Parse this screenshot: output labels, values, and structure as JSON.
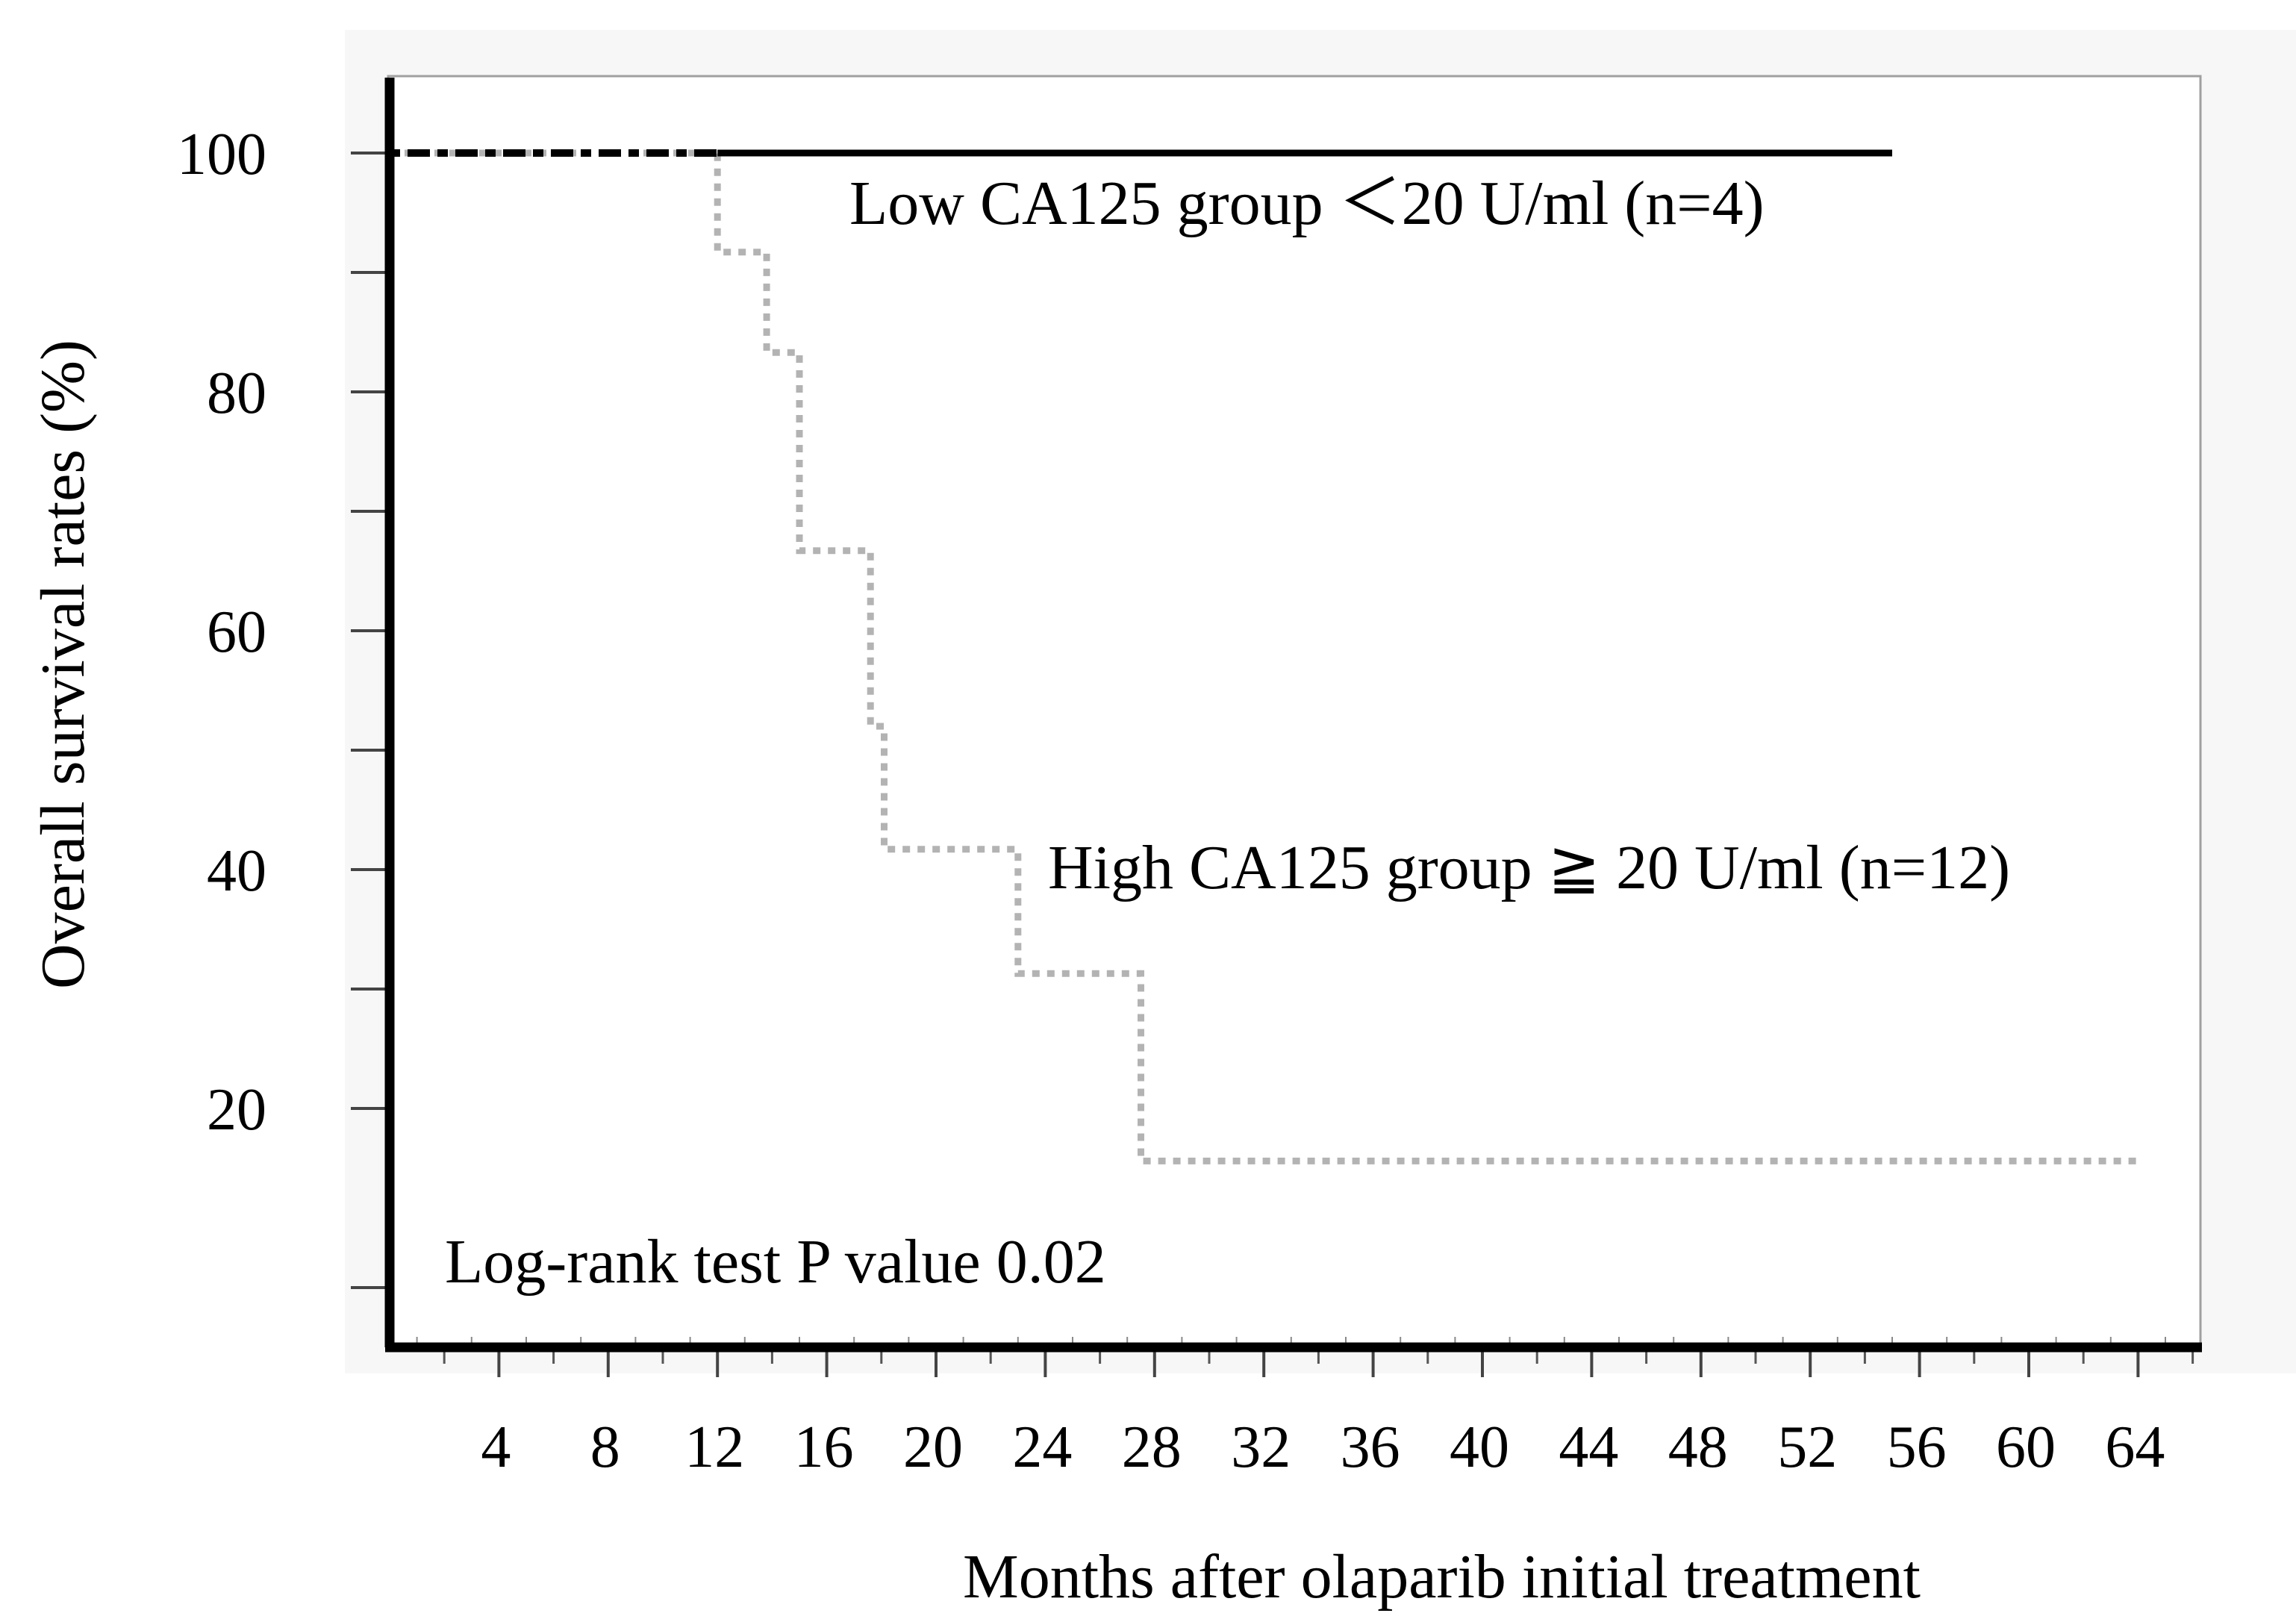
{
  "chart_data": {
    "type": "line",
    "title": "",
    "xlabel": "Months after olaparib initial treatment",
    "ylabel": "Overall survival rates (%)",
    "xlim": [
      0,
      66
    ],
    "ylim": [
      0,
      105
    ],
    "x_ticks": [
      4,
      8,
      12,
      16,
      20,
      24,
      28,
      32,
      36,
      40,
      44,
      48,
      52,
      56,
      60,
      64
    ],
    "x_tick_labels": [
      "4",
      "8",
      "12",
      "16",
      "20",
      "24",
      "28",
      "32",
      "36",
      "40",
      "44",
      "48",
      "52",
      "56",
      "60",
      "64"
    ],
    "y_ticks": [
      20,
      40,
      60,
      80,
      100
    ],
    "y_tick_labels": [
      "20",
      "40",
      "60",
      "80",
      "100"
    ],
    "y_minor_ticks": [
      5,
      30,
      50,
      70,
      90
    ],
    "grid": false,
    "series": [
      {
        "name": "Low CA125 group ＜20 U/ml (n=4)",
        "style": "solid",
        "color": "#000000",
        "x": [
          0,
          55
        ],
        "y": [
          100,
          100
        ]
      },
      {
        "name": "High CA125 group ≧ 20 U/ml (n=12)",
        "style": "dotted",
        "color": "#b3b3b3",
        "x": [
          0,
          12,
          12,
          13.8,
          13.8,
          15,
          15,
          17.6,
          17.6,
          18.1,
          18.1,
          23,
          23,
          27.5,
          27.5,
          64
        ],
        "y": [
          100,
          100,
          91.7,
          91.7,
          83.3,
          83.3,
          66.7,
          66.7,
          52,
          52,
          41.7,
          41.7,
          31.3,
          31.3,
          15.6,
          15.6
        ]
      }
    ],
    "annotations": [
      {
        "text": "Low CA125 group ＜20 U/ml (n=4)",
        "x": 17.3,
        "y": 93
      },
      {
        "text": "High CA125 group ≧ 20 U/ml (n=12)",
        "x": 24.7,
        "y": 37
      },
      {
        "text": "Log-rank test P value 0.02",
        "x": 2,
        "y": 3.6
      }
    ]
  }
}
